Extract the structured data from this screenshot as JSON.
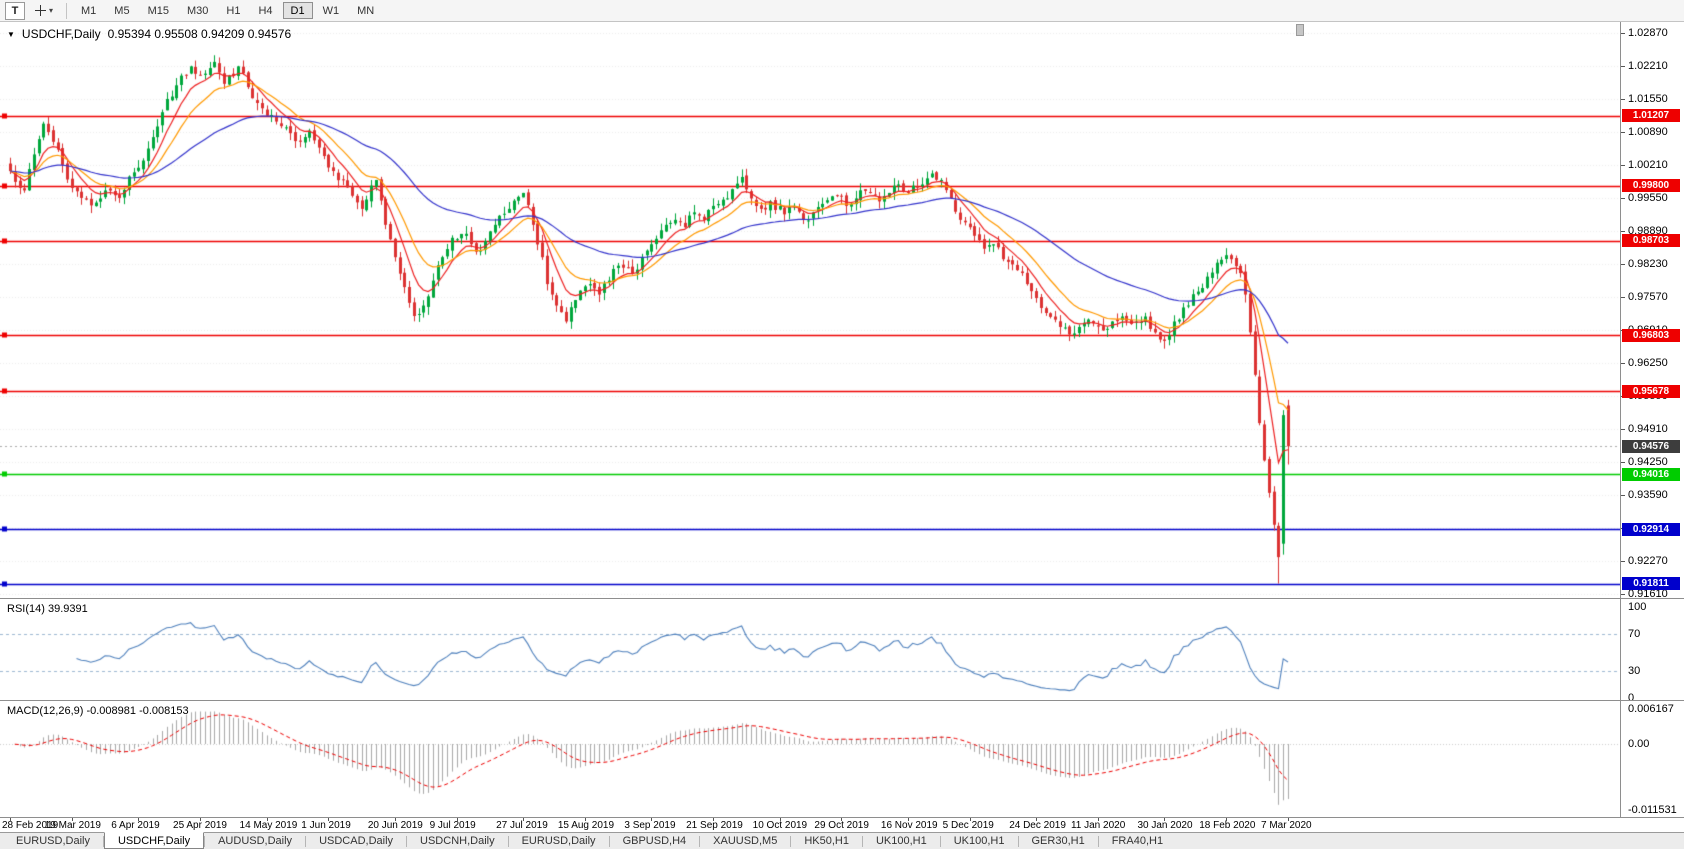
{
  "toolbar": {
    "tool_label": "T",
    "timeframes": [
      "M1",
      "M5",
      "M15",
      "M30",
      "H1",
      "H4",
      "D1",
      "W1",
      "MN"
    ],
    "active_timeframe": "D1"
  },
  "icons": {
    "collapse": "▼",
    "caret_down": "▾",
    "crosshair": "+"
  },
  "header": {
    "symbol": "USDCHF,Daily",
    "ohlc": "0.95394 0.95508 0.94209 0.94576"
  },
  "indicators": {
    "rsi_label": "RSI(14) 39.9391",
    "macd_label": "MACD(12,26,9) -0.008981 -0.008153"
  },
  "tabs": [
    {
      "label": "EURUSD,Daily",
      "active": false
    },
    {
      "label": "USDCHF,Daily",
      "active": true
    },
    {
      "label": "AUDUSD,Daily",
      "active": false
    },
    {
      "label": "USDCAD,Daily",
      "active": false
    },
    {
      "label": "USDCNH,Daily",
      "active": false
    },
    {
      "label": "EURUSD,Daily",
      "active": false
    },
    {
      "label": "GBPUSD,H4",
      "active": false
    },
    {
      "label": "XAUUSD,M5",
      "active": false
    },
    {
      "label": "HK50,H1",
      "active": false
    },
    {
      "label": "UK100,H1",
      "active": false
    },
    {
      "label": "UK100,H1",
      "active": false
    },
    {
      "label": "GER30,H1",
      "active": false
    },
    {
      "label": "FRA40,H1",
      "active": false
    }
  ],
  "chart_data": [
    {
      "type": "candlestick",
      "symbol": "USDCHF",
      "timeframe": "Daily",
      "ohlc": {
        "open": 0.95394,
        "high": 0.95508,
        "low": 0.94209,
        "close": 0.94576
      },
      "current_price": 0.94576,
      "current_price_label": "0.94576",
      "num_candles": 270,
      "seed": 7,
      "wiggle": 0.0018,
      "ylim": [
        0.9157,
        1.0309
      ],
      "y_ticks": [
        "1.02870",
        "1.02210",
        "1.01550",
        "1.00890",
        "1.00210",
        "0.99550",
        "0.98890",
        "0.98230",
        "0.97570",
        "0.96910",
        "0.96250",
        "0.95590",
        "0.94910",
        "0.94250",
        "0.93590",
        "0.92930",
        "0.92270",
        "0.91610"
      ],
      "x_labels": [
        [
          0,
          "28 Feb 2019"
        ],
        [
          13,
          "19 Mar 2019"
        ],
        [
          27,
          "6 Apr 2019"
        ],
        [
          40,
          "25 Apr 2019"
        ],
        [
          54,
          "14 May 2019"
        ],
        [
          67,
          "1 Jun 2019"
        ],
        [
          81,
          "20 Jun 2019"
        ],
        [
          94,
          "9 Jul 2019"
        ],
        [
          108,
          "27 Jul 2019"
        ],
        [
          121,
          "15 Aug 2019"
        ],
        [
          135,
          "3 Sep 2019"
        ],
        [
          148,
          "21 Sep 2019"
        ],
        [
          162,
          "10 Oct 2019"
        ],
        [
          175,
          "29 Oct 2019"
        ],
        [
          189,
          "16 Nov 2019"
        ],
        [
          202,
          "5 Dec 2019"
        ],
        [
          216,
          "24 Dec 2019"
        ],
        [
          229,
          "11 Jan 2020"
        ],
        [
          243,
          "30 Jan 2020"
        ],
        [
          256,
          "18 Feb 2020"
        ],
        [
          269,
          "7 Mar 2020"
        ]
      ],
      "hlines": [
        {
          "price": 1.01207,
          "label": "1.01207",
          "color": "#ee0000"
        },
        {
          "price": 0.998,
          "label": "0.99800",
          "color": "#ee0000"
        },
        {
          "price": 0.98703,
          "label": "0.98703",
          "color": "#ee0000"
        },
        {
          "price": 0.96803,
          "label": "0.96803",
          "color": "#ee0000"
        },
        {
          "price": 0.95678,
          "label": "0.95678",
          "color": "#ee0000"
        },
        {
          "price": 0.94016,
          "label": "0.94016",
          "color": "#00cc00"
        },
        {
          "price": 0.92914,
          "label": "0.92914",
          "color": "#0000cc"
        },
        {
          "price": 0.91811,
          "label": "0.91811",
          "color": "#0000cc"
        }
      ],
      "moving_averages": [
        {
          "type": "ema",
          "period": 7,
          "color": "#ee2222"
        },
        {
          "type": "ema",
          "period": 14,
          "color": "#ff9900"
        },
        {
          "type": "ema",
          "period": 45,
          "color": "#3333cc"
        }
      ],
      "colors": {
        "up": "#00a73c",
        "down": "#dc3232",
        "grid": "#ececec",
        "current_price_tag": "#3d3d3d",
        "background": "#ffffff"
      },
      "close_keypoints": [
        [
          0,
          1.001
        ],
        [
          3,
          0.9971
        ],
        [
          6,
          1.0074
        ],
        [
          7,
          1.0105
        ],
        [
          10,
          1.0053
        ],
        [
          12,
          0.9993
        ],
        [
          15,
          0.9956
        ],
        [
          17,
          0.9941
        ],
        [
          20,
          0.9971
        ],
        [
          23,
          0.9956
        ],
        [
          25,
          0.9999
        ],
        [
          28,
          1.0031
        ],
        [
          30,
          1.0078
        ],
        [
          32,
          1.0128
        ],
        [
          35,
          1.0182
        ],
        [
          38,
          1.022
        ],
        [
          40,
          1.0203
        ],
        [
          43,
          1.0229
        ],
        [
          45,
          1.0185
        ],
        [
          48,
          1.022
        ],
        [
          51,
          1.0156
        ],
        [
          54,
          1.0121
        ],
        [
          57,
          1.01
        ],
        [
          60,
          1.007
        ],
        [
          63,
          1.0091
        ],
        [
          65,
          1.0057
        ],
        [
          68,
          1.001
        ],
        [
          71,
          0.9977
        ],
        [
          74,
          0.9934
        ],
        [
          77,
          0.9992
        ],
        [
          79,
          0.9902
        ],
        [
          81,
          0.9837
        ],
        [
          83,
          0.9777
        ],
        [
          85,
          0.9719
        ],
        [
          87,
          0.974
        ],
        [
          89,
          0.979
        ],
        [
          91,
          0.9837
        ],
        [
          93,
          0.9876
        ],
        [
          96,
          0.9884
        ],
        [
          98,
          0.9848
        ],
        [
          100,
          0.9869
        ],
        [
          102,
          0.9902
        ],
        [
          105,
          0.9934
        ],
        [
          108,
          0.9966
        ],
        [
          110,
          0.9902
        ],
        [
          112,
          0.9837
        ],
        [
          113,
          0.9783
        ],
        [
          115,
          0.974
        ],
        [
          117,
          0.9708
        ],
        [
          119,
          0.9751
        ],
        [
          122,
          0.9783
        ],
        [
          124,
          0.9762
        ],
        [
          126,
          0.979
        ],
        [
          128,
          0.982
        ],
        [
          131,
          0.9805
        ],
        [
          133,
          0.9837
        ],
        [
          135,
          0.9863
        ],
        [
          137,
          0.9891
        ],
        [
          140,
          0.9912
        ],
        [
          142,
          0.9897
        ],
        [
          144,
          0.9927
        ],
        [
          146,
          0.9912
        ],
        [
          148,
          0.994
        ],
        [
          151,
          0.9955
        ],
        [
          154,
          0.9998
        ],
        [
          156,
          0.9955
        ],
        [
          158,
          0.9934
        ],
        [
          160,
          0.9949
        ],
        [
          163,
          0.9923
        ],
        [
          165,
          0.994
        ],
        [
          167,
          0.9912
        ],
        [
          169,
          0.9927
        ],
        [
          171,
          0.9944
        ],
        [
          174,
          0.9961
        ],
        [
          176,
          0.994
        ],
        [
          178,
          0.9955
        ],
        [
          180,
          0.997
        ],
        [
          183,
          0.9949
        ],
        [
          185,
          0.9966
        ],
        [
          187,
          0.9983
        ],
        [
          189,
          0.9966
        ],
        [
          192,
          0.9983
        ],
        [
          194,
          1.0005
        ],
        [
          196,
          0.9992
        ],
        [
          198,
          0.9955
        ],
        [
          200,
          0.9912
        ],
        [
          203,
          0.988
        ],
        [
          205,
          0.9854
        ],
        [
          207,
          0.9863
        ],
        [
          209,
          0.9833
        ],
        [
          212,
          0.9811
        ],
        [
          214,
          0.9783
        ],
        [
          216,
          0.9755
        ],
        [
          218,
          0.9725
        ],
        [
          221,
          0.9697
        ],
        [
          223,
          0.9682
        ],
        [
          225,
          0.9697
        ],
        [
          227,
          0.9712
        ],
        [
          230,
          0.969
        ],
        [
          232,
          0.9708
        ],
        [
          234,
          0.9718
        ],
        [
          236,
          0.9703
        ],
        [
          239,
          0.9718
        ],
        [
          241,
          0.9686
        ],
        [
          243,
          0.9669
        ],
        [
          245,
          0.9708
        ],
        [
          248,
          0.974
        ],
        [
          250,
          0.9768
        ],
        [
          252,
          0.9798
        ],
        [
          254,
          0.9826
        ],
        [
          256,
          0.9841
        ],
        [
          257,
          0.9833
        ],
        [
          259,
          0.9805
        ],
        [
          260,
          0.9762
        ],
        [
          261,
          0.9686
        ],
        [
          262,
          0.9601
        ],
        [
          263,
          0.9504
        ],
        [
          264,
          0.9429
        ],
        [
          265,
          0.9364
        ],
        [
          266,
          0.93
        ],
        [
          267,
          0.9235
        ],
        [
          268,
          0.952
        ],
        [
          269,
          0.94576
        ]
      ],
      "candle_overrides": [
        {
          "i": 267,
          "low": 0.9182
        },
        {
          "i": 268,
          "open": 0.9262,
          "high": 0.953,
          "low": 0.924,
          "close": 0.952
        },
        {
          "i": 269,
          "open": 0.95394,
          "high": 0.95508,
          "low": 0.94209,
          "close": 0.94576
        }
      ]
    },
    {
      "type": "line",
      "name": "RSI",
      "params": "14",
      "value": 39.9391,
      "range": [
        0,
        100
      ],
      "levels": [
        70,
        30
      ],
      "y_ticks": [
        "100",
        "70",
        "30",
        "0"
      ],
      "color": "#4f81bd",
      "level_color": "#9db8d2"
    },
    {
      "type": "histogram+line",
      "name": "MACD",
      "params": "12,26,9",
      "macd_value": -0.008981,
      "signal_value": -0.008153,
      "y_ticks": [
        "0.006167",
        "0.00",
        "-0.011531"
      ],
      "range": [
        -0.011531,
        0.006167
      ],
      "histogram_color": "#a9a9a9",
      "signal_color": "#ee0000"
    }
  ]
}
